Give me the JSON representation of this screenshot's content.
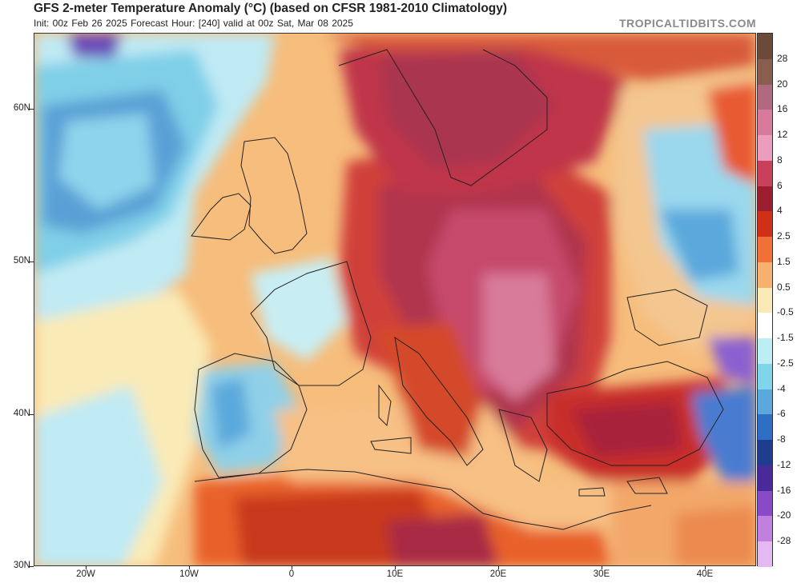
{
  "header": {
    "title": "GFS 2-meter Temperature Anomaly (°C) (based on CFSR 1981-2010 Climatology)",
    "subtitle": "Init: 00z Feb 26 2025   Forecast Hour: [240]   valid at 00z Sat, Mar 08 2025",
    "watermark": "TROPICALTIDBITS.COM"
  },
  "axes": {
    "lat_labels": [
      "60N",
      "50N",
      "40N",
      "30N"
    ],
    "lon_labels": [
      "20W",
      "10W",
      "0",
      "10E",
      "20E",
      "30E",
      "40E"
    ]
  },
  "colorbar": {
    "labels": [
      "28",
      "20",
      "16",
      "12",
      "8",
      "6",
      "4",
      "2.5",
      "1.5",
      "0.5",
      "-0.5",
      "-1.5",
      "-2.5",
      "-4",
      "-6",
      "-8",
      "-12",
      "-16",
      "-20",
      "-28"
    ],
    "colors": [
      "#6b4a3a",
      "#8a5e4e",
      "#b06a80",
      "#d77a9c",
      "#ec9cbc",
      "#c8405a",
      "#9c1e2e",
      "#d03018",
      "#f07038",
      "#f6b070",
      "#faeab6",
      "#ffffff",
      "#bdeef4",
      "#7fd6ea",
      "#5aa8dc",
      "#2e6ec4",
      "#1e3d8e",
      "#4a2a9a",
      "#8a4ac8",
      "#c080e0",
      "#e4b8f0"
    ]
  }
}
